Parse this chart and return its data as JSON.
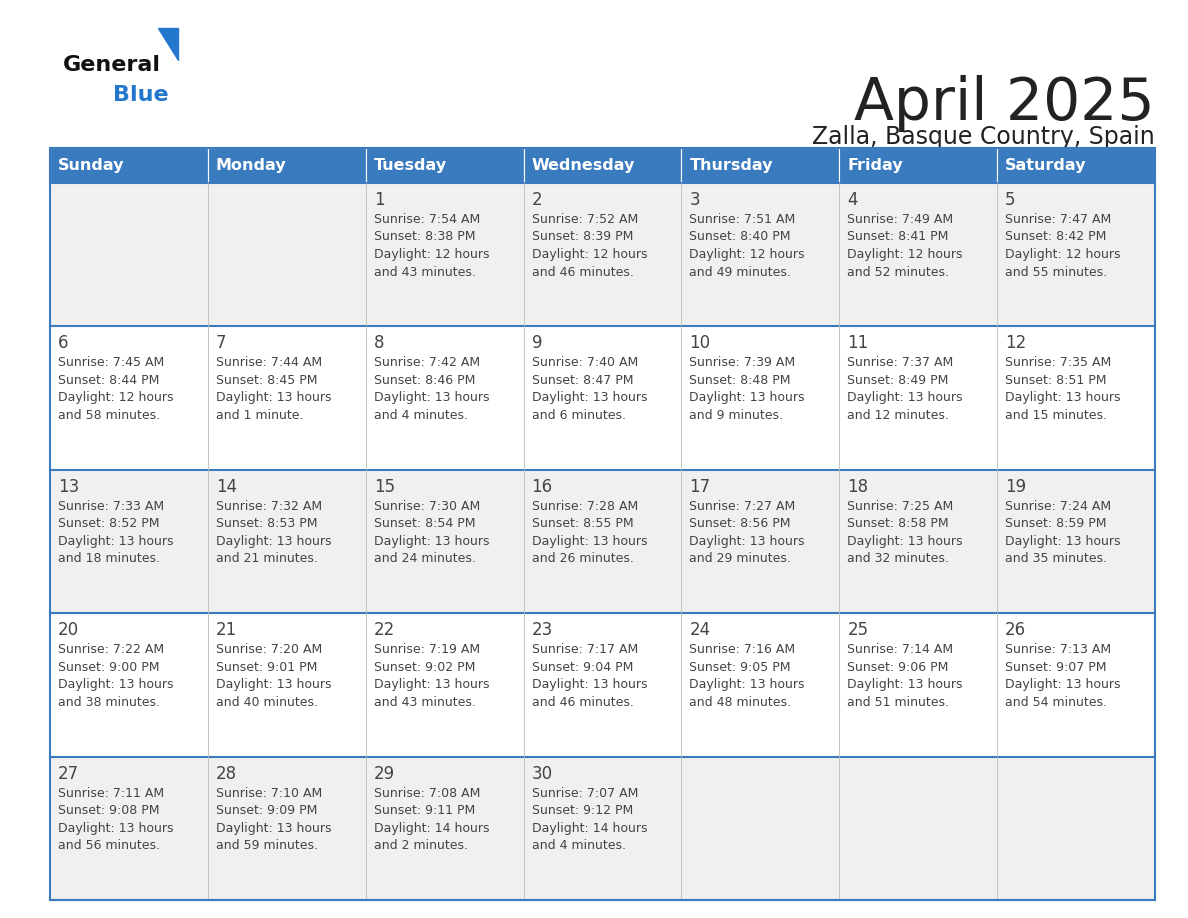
{
  "title": "April 2025",
  "subtitle": "Zalla, Basque Country, Spain",
  "days_of_week": [
    "Sunday",
    "Monday",
    "Tuesday",
    "Wednesday",
    "Thursday",
    "Friday",
    "Saturday"
  ],
  "header_bg": "#3a7bbf",
  "header_text": "#ffffff",
  "cell_bg_odd": "#f0f0f0",
  "cell_bg_even": "#ffffff",
  "grid_line_color": "#3a7bbf",
  "text_color": "#444444",
  "title_color": "#222222",
  "calendar_data": [
    [
      null,
      null,
      {
        "day": "1",
        "sunrise": "7:54 AM",
        "sunset": "8:38 PM",
        "daylight": "12 hours",
        "daylight2": "and 43 minutes."
      },
      {
        "day": "2",
        "sunrise": "7:52 AM",
        "sunset": "8:39 PM",
        "daylight": "12 hours",
        "daylight2": "and 46 minutes."
      },
      {
        "day": "3",
        "sunrise": "7:51 AM",
        "sunset": "8:40 PM",
        "daylight": "12 hours",
        "daylight2": "and 49 minutes."
      },
      {
        "day": "4",
        "sunrise": "7:49 AM",
        "sunset": "8:41 PM",
        "daylight": "12 hours",
        "daylight2": "and 52 minutes."
      },
      {
        "day": "5",
        "sunrise": "7:47 AM",
        "sunset": "8:42 PM",
        "daylight": "12 hours",
        "daylight2": "and 55 minutes."
      }
    ],
    [
      {
        "day": "6",
        "sunrise": "7:45 AM",
        "sunset": "8:44 PM",
        "daylight": "12 hours",
        "daylight2": "and 58 minutes."
      },
      {
        "day": "7",
        "sunrise": "7:44 AM",
        "sunset": "8:45 PM",
        "daylight": "13 hours",
        "daylight2": "and 1 minute."
      },
      {
        "day": "8",
        "sunrise": "7:42 AM",
        "sunset": "8:46 PM",
        "daylight": "13 hours",
        "daylight2": "and 4 minutes."
      },
      {
        "day": "9",
        "sunrise": "7:40 AM",
        "sunset": "8:47 PM",
        "daylight": "13 hours",
        "daylight2": "and 6 minutes."
      },
      {
        "day": "10",
        "sunrise": "7:39 AM",
        "sunset": "8:48 PM",
        "daylight": "13 hours",
        "daylight2": "and 9 minutes."
      },
      {
        "day": "11",
        "sunrise": "7:37 AM",
        "sunset": "8:49 PM",
        "daylight": "13 hours",
        "daylight2": "and 12 minutes."
      },
      {
        "day": "12",
        "sunrise": "7:35 AM",
        "sunset": "8:51 PM",
        "daylight": "13 hours",
        "daylight2": "and 15 minutes."
      }
    ],
    [
      {
        "day": "13",
        "sunrise": "7:33 AM",
        "sunset": "8:52 PM",
        "daylight": "13 hours",
        "daylight2": "and 18 minutes."
      },
      {
        "day": "14",
        "sunrise": "7:32 AM",
        "sunset": "8:53 PM",
        "daylight": "13 hours",
        "daylight2": "and 21 minutes."
      },
      {
        "day": "15",
        "sunrise": "7:30 AM",
        "sunset": "8:54 PM",
        "daylight": "13 hours",
        "daylight2": "and 24 minutes."
      },
      {
        "day": "16",
        "sunrise": "7:28 AM",
        "sunset": "8:55 PM",
        "daylight": "13 hours",
        "daylight2": "and 26 minutes."
      },
      {
        "day": "17",
        "sunrise": "7:27 AM",
        "sunset": "8:56 PM",
        "daylight": "13 hours",
        "daylight2": "and 29 minutes."
      },
      {
        "day": "18",
        "sunrise": "7:25 AM",
        "sunset": "8:58 PM",
        "daylight": "13 hours",
        "daylight2": "and 32 minutes."
      },
      {
        "day": "19",
        "sunrise": "7:24 AM",
        "sunset": "8:59 PM",
        "daylight": "13 hours",
        "daylight2": "and 35 minutes."
      }
    ],
    [
      {
        "day": "20",
        "sunrise": "7:22 AM",
        "sunset": "9:00 PM",
        "daylight": "13 hours",
        "daylight2": "and 38 minutes."
      },
      {
        "day": "21",
        "sunrise": "7:20 AM",
        "sunset": "9:01 PM",
        "daylight": "13 hours",
        "daylight2": "and 40 minutes."
      },
      {
        "day": "22",
        "sunrise": "7:19 AM",
        "sunset": "9:02 PM",
        "daylight": "13 hours",
        "daylight2": "and 43 minutes."
      },
      {
        "day": "23",
        "sunrise": "7:17 AM",
        "sunset": "9:04 PM",
        "daylight": "13 hours",
        "daylight2": "and 46 minutes."
      },
      {
        "day": "24",
        "sunrise": "7:16 AM",
        "sunset": "9:05 PM",
        "daylight": "13 hours",
        "daylight2": "and 48 minutes."
      },
      {
        "day": "25",
        "sunrise": "7:14 AM",
        "sunset": "9:06 PM",
        "daylight": "13 hours",
        "daylight2": "and 51 minutes."
      },
      {
        "day": "26",
        "sunrise": "7:13 AM",
        "sunset": "9:07 PM",
        "daylight": "13 hours",
        "daylight2": "and 54 minutes."
      }
    ],
    [
      {
        "day": "27",
        "sunrise": "7:11 AM",
        "sunset": "9:08 PM",
        "daylight": "13 hours",
        "daylight2": "and 56 minutes."
      },
      {
        "day": "28",
        "sunrise": "7:10 AM",
        "sunset": "9:09 PM",
        "daylight": "13 hours",
        "daylight2": "and 59 minutes."
      },
      {
        "day": "29",
        "sunrise": "7:08 AM",
        "sunset": "9:11 PM",
        "daylight": "14 hours",
        "daylight2": "and 2 minutes."
      },
      {
        "day": "30",
        "sunrise": "7:07 AM",
        "sunset": "9:12 PM",
        "daylight": "14 hours",
        "daylight2": "and 4 minutes."
      },
      null,
      null,
      null
    ]
  ]
}
